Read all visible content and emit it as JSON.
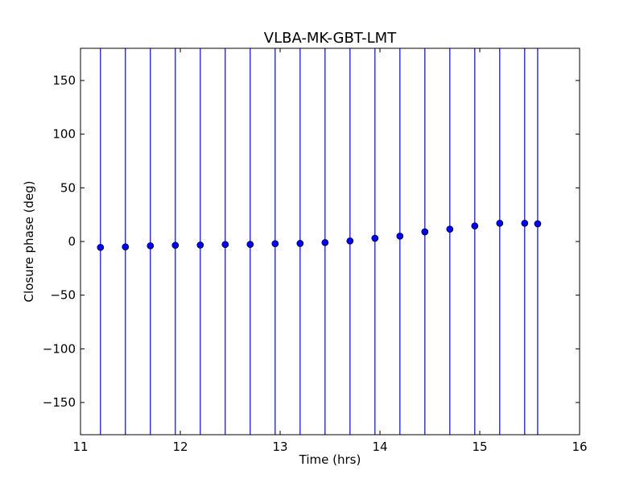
{
  "chart_data": {
    "type": "scatter",
    "title": "VLBA-MK-GBT-LMT",
    "xlabel": "Time (hrs)",
    "ylabel": "Closure phase (deg)",
    "xlim": [
      11,
      16
    ],
    "ylim": [
      -180,
      180
    ],
    "xticks": [
      11,
      12,
      13,
      14,
      15,
      16
    ],
    "yticks": [
      -150,
      -100,
      -50,
      0,
      50,
      100,
      150
    ],
    "grid": false,
    "error_bars": "vertical lines spanning the full y range at every point",
    "colors": {
      "marker": "#0000ff",
      "errorbar": "#0000ff"
    },
    "series": [
      {
        "x": [
          11.2,
          11.45,
          11.7,
          11.95,
          12.2,
          12.45,
          12.7,
          12.95,
          13.2,
          13.45,
          13.7,
          13.95,
          14.2,
          14.45,
          14.7,
          14.95,
          15.2,
          15.45,
          15.58
        ],
        "y": [
          -5.5,
          -5.0,
          -4.0,
          -3.5,
          -3.3,
          -2.8,
          -2.7,
          -2.0,
          -1.8,
          -1.0,
          0.5,
          3.0,
          5.0,
          9.0,
          11.5,
          14.5,
          17.0,
          17.0,
          16.5
        ]
      }
    ]
  }
}
